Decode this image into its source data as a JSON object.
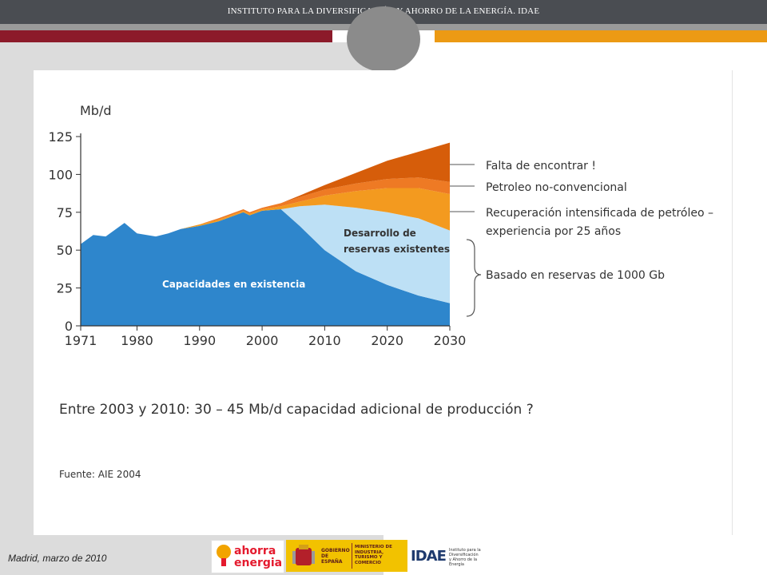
{
  "header": {
    "title": "INSTITUTO PARA LA DIVERSIFICACIÓN Y AHORRO DE LA ENERGÍA. IDAE"
  },
  "colors": {
    "topbar": "#4a4d52",
    "red_bar": "#8c1a2a",
    "orange_bar": "#ec9a14",
    "existing_capacity": "#2e86cc",
    "reserve_development": "#bde0f5",
    "enhanced_recovery": "#f39a1f",
    "non_conventional": "#ee7a24",
    "yet_to_find": "#d65d0a"
  },
  "chart_data": {
    "type": "area",
    "ylabel": "Mb/d",
    "ylim": [
      0,
      125
    ],
    "yticks": [
      "0",
      "25",
      "50",
      "75",
      "100",
      "125"
    ],
    "xticks": [
      "1971",
      "1980",
      "1990",
      "2000",
      "2010",
      "2020",
      "2030"
    ],
    "xlim": [
      1971,
      2030
    ],
    "series": [
      {
        "name": "Capacidades en existencia",
        "color_key": "existing_capacity",
        "x": [
          1971,
          1973,
          1975,
          1977,
          1978,
          1980,
          1983,
          1985,
          1987,
          1990,
          1993,
          1997,
          1998,
          2000,
          2003,
          2006,
          2010,
          2015,
          2020,
          2025,
          2030
        ],
        "y": [
          54,
          60,
          59,
          65,
          68,
          61,
          59,
          61,
          64,
          66,
          69,
          75,
          73,
          76,
          77,
          66,
          50,
          36,
          27,
          20,
          15
        ]
      },
      {
        "name": "Desarrollo de reservas existentes",
        "color_key": "reserve_development",
        "x": [
          1971,
          1973,
          1975,
          1977,
          1978,
          1980,
          1983,
          1985,
          1987,
          1990,
          1993,
          1997,
          1998,
          2000,
          2003,
          2006,
          2010,
          2015,
          2020,
          2025,
          2030
        ],
        "y": [
          0,
          0,
          0,
          0,
          0,
          0,
          0,
          0,
          0,
          0,
          0,
          0,
          0,
          0,
          0,
          13,
          30,
          42,
          48,
          51,
          48
        ]
      },
      {
        "name": "Recuperación intensificada de petróleo – experiencia por 25 años",
        "color_key": "enhanced_recovery",
        "x": [
          1971,
          1973,
          1975,
          1977,
          1978,
          1980,
          1983,
          1985,
          1987,
          1990,
          1993,
          1997,
          1998,
          2000,
          2003,
          2006,
          2010,
          2015,
          2020,
          2025,
          2030
        ],
        "y": [
          0,
          0,
          0,
          0,
          0,
          0,
          0,
          0,
          0,
          1,
          1,
          1,
          1,
          1,
          2,
          3,
          6,
          11,
          16,
          20,
          24
        ]
      },
      {
        "name": "Petroleo no-convencional",
        "color_key": "non_conventional",
        "x": [
          1971,
          1973,
          1975,
          1977,
          1978,
          1980,
          1983,
          1985,
          1987,
          1990,
          1993,
          1997,
          1998,
          2000,
          2003,
          2006,
          2010,
          2015,
          2020,
          2025,
          2030
        ],
        "y": [
          0,
          0,
          0,
          0,
          0,
          0,
          0,
          0,
          0,
          0,
          1,
          1,
          1,
          1,
          2,
          3,
          4,
          5,
          6,
          7,
          8
        ]
      },
      {
        "name": "Falta de encontrar !",
        "color_key": "yet_to_find",
        "x": [
          1971,
          1973,
          1975,
          1977,
          1978,
          1980,
          1983,
          1985,
          1987,
          1990,
          1993,
          1997,
          1998,
          2000,
          2003,
          2006,
          2010,
          2015,
          2020,
          2025,
          2030
        ],
        "y": [
          0,
          0,
          0,
          0,
          0,
          0,
          0,
          0,
          0,
          0,
          0,
          0,
          0,
          0,
          0,
          1,
          3,
          7,
          12,
          17,
          26
        ]
      }
    ],
    "inner_labels": {
      "existing": "Capacidades en existencia",
      "development_line1": "Desarrollo de",
      "development_line2": "reservas existentes"
    },
    "legend": {
      "placement": "right",
      "falta": "Falta de encontrar !",
      "petroleo": "Petroleo no-convencional",
      "recuperacion_line1": "Recuperación intensificada de petróleo –",
      "recuperacion_line2": "experiencia por 25 años",
      "basado": "Basado en reservas de 1000 Gb"
    },
    "note": "Entre 2003 y 2010: 30 – 45 Mb/d capacidad adicional de producción ?",
    "source": "Fuente: AIE 2004"
  },
  "footer": {
    "date": "Madrid, marzo de 2010",
    "logo_ahorra_1": "ahorra",
    "logo_ahorra_2": "energia",
    "logo_gob_1": "GOBIERNO DE ESPAÑA",
    "logo_gob_2": "MINISTERIO DE INDUSTRIA, TURISMO Y COMERCIO",
    "logo_idae_1": "IDAE",
    "logo_idae_2": "Instituto para la Diversificación y Ahorro de la Energía"
  }
}
